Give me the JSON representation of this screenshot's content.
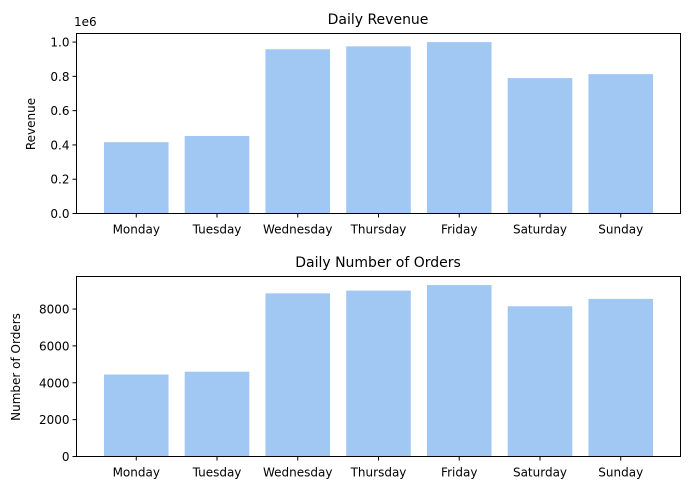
{
  "chart_data": [
    {
      "type": "bar",
      "title": "Daily Revenue",
      "xlabel": "",
      "ylabel": "Revenue",
      "offset_label": "1e6",
      "categories": [
        "Monday",
        "Tuesday",
        "Wednesday",
        "Thursday",
        "Friday",
        "Saturday",
        "Sunday"
      ],
      "values": [
        416000,
        452000,
        958000,
        975000,
        1000000,
        790000,
        813000
      ],
      "yticks": [
        0,
        200000,
        400000,
        600000,
        800000,
        1000000
      ],
      "ytick_labels": [
        "0.0",
        "0.2",
        "0.4",
        "0.6",
        "0.8",
        "1.0"
      ],
      "ylim": [
        0,
        1050000
      ],
      "bar_color": "#a1c8f3",
      "grid": false
    },
    {
      "type": "bar",
      "title": "Daily Number of Orders",
      "xlabel": "",
      "ylabel": "Number of Orders",
      "categories": [
        "Monday",
        "Tuesday",
        "Wednesday",
        "Thursday",
        "Friday",
        "Saturday",
        "Sunday"
      ],
      "values": [
        4450,
        4600,
        8850,
        9000,
        9300,
        8150,
        8550
      ],
      "yticks": [
        0,
        2000,
        4000,
        6000,
        8000
      ],
      "ytick_labels": [
        "0",
        "2000",
        "4000",
        "6000",
        "8000"
      ],
      "ylim": [
        0,
        9765
      ],
      "bar_color": "#a1c8f3",
      "grid": false
    }
  ]
}
